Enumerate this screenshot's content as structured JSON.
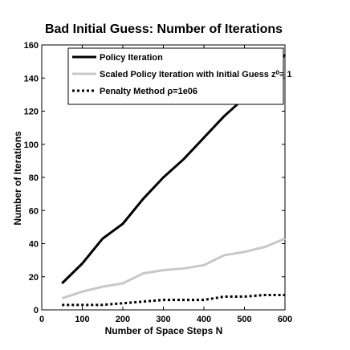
{
  "chart_data": {
    "type": "line",
    "title": "Bad Initial Guess: Number of Iterations",
    "xlabel": "Number of Space Steps N",
    "ylabel": "Number of Iterations",
    "xlim": [
      0,
      600
    ],
    "ylim": [
      0,
      160
    ],
    "xticks": [
      0,
      100,
      200,
      300,
      400,
      500,
      600
    ],
    "yticks": [
      0,
      20,
      40,
      60,
      80,
      100,
      120,
      140,
      160
    ],
    "grid": false,
    "legend_position": "top",
    "series": [
      {
        "name": "Policy Iteration",
        "color": "#000000",
        "style": "solid",
        "x": [
          50,
          100,
          150,
          200,
          250,
          300,
          350,
          400,
          450,
          500,
          550,
          600
        ],
        "y": [
          16,
          28,
          43,
          52,
          67,
          80,
          91,
          104,
          117,
          128,
          141,
          154
        ]
      },
      {
        "name": "Scaled Policy Iteration with Initial Guess z⁰≡ 1",
        "color": "#c8c8c8",
        "style": "solid",
        "x": [
          50,
          100,
          150,
          200,
          250,
          300,
          350,
          400,
          450,
          500,
          550,
          600
        ],
        "y": [
          7,
          11,
          14,
          16,
          22,
          24,
          25,
          27,
          33,
          35,
          38,
          43
        ]
      },
      {
        "name": "Penalty Method ρ=1e06",
        "color": "#000000",
        "style": "dotted",
        "x": [
          50,
          100,
          150,
          200,
          250,
          300,
          350,
          400,
          450,
          500,
          550,
          600
        ],
        "y": [
          3,
          3,
          3,
          4,
          5,
          6,
          6,
          6,
          8,
          8,
          9,
          9
        ]
      }
    ]
  }
}
